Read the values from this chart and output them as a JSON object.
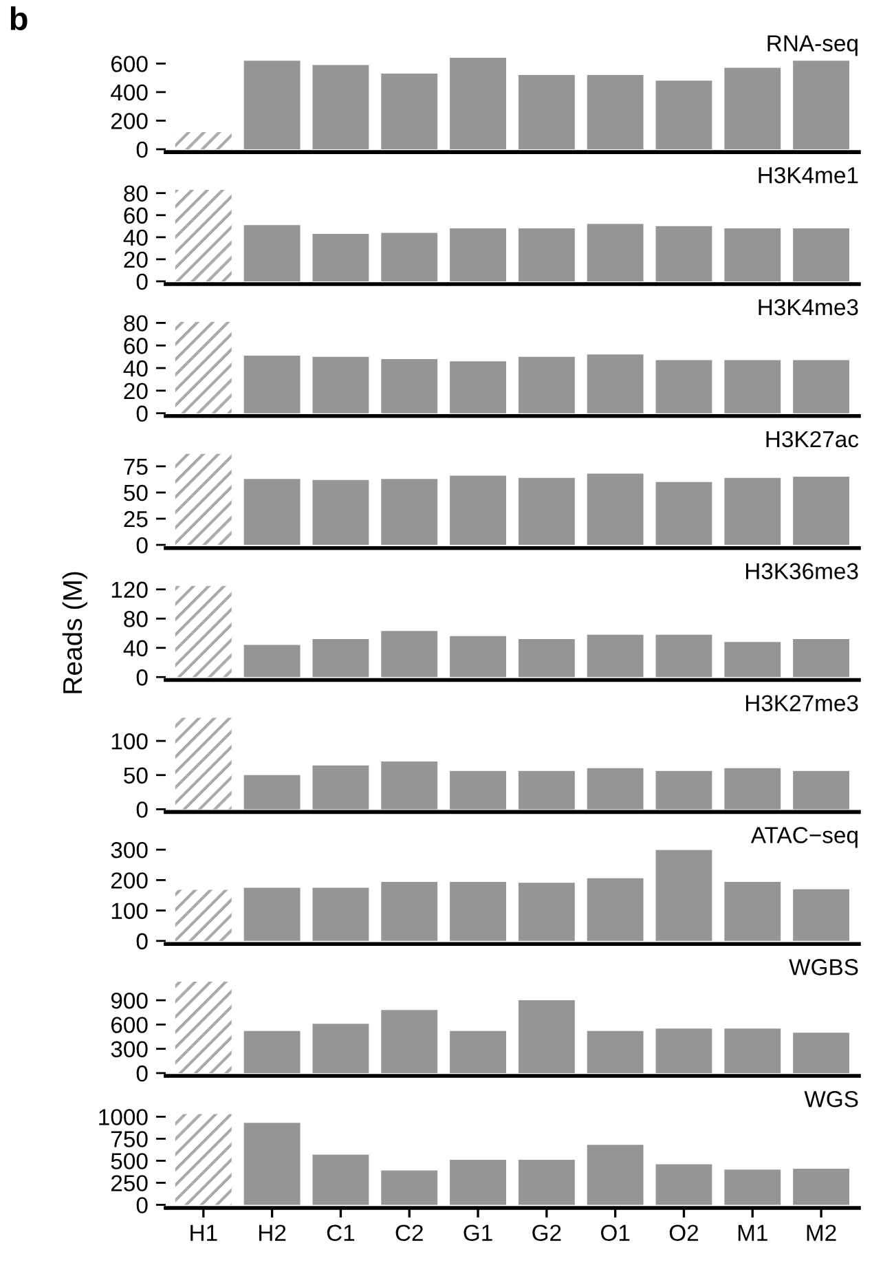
{
  "chart_data": [
    {
      "type": "bar",
      "title": "RNA-seq",
      "annotations": [
        "b"
      ],
      "categories": [
        null,
        null,
        null,
        null,
        null,
        null,
        null,
        null,
        null,
        null
      ],
      "color": "#959595",
      "colors": [
        "#aaaaaa",
        "#959595",
        "#959595",
        "#959595",
        "#959595",
        "#959595",
        "#959595",
        "#959595",
        "#959595",
        "#959595"
      ],
      "values": [
        120,
        620,
        590,
        530,
        640,
        520,
        520,
        480,
        570,
        620
      ],
      "ylim": [
        -20,
        640
      ],
      "yticks": [
        0,
        200,
        400,
        600
      ],
      "tick_labels": "y"
    },
    {
      "type": "bar",
      "title": "H3K4me1",
      "categories": [
        null,
        null,
        null,
        null,
        null,
        null,
        null,
        null,
        null,
        null
      ],
      "color": "#959595",
      "colors": [
        "#aaaaaa",
        "#959595",
        "#959595",
        "#959595",
        "#959595",
        "#959595",
        "#959595",
        "#959595",
        "#959595",
        "#959595"
      ],
      "values": [
        83,
        51,
        43,
        44,
        48,
        48,
        52,
        50,
        48,
        48
      ],
      "ylim": [
        -2.5,
        83
      ],
      "yticks": [
        0,
        20,
        40,
        60,
        80
      ],
      "tick_labels": "y"
    },
    {
      "type": "bar",
      "title": "H3K4me3",
      "categories": [
        null,
        null,
        null,
        null,
        null,
        null,
        null,
        null,
        null,
        null
      ],
      "color": "#959595",
      "colors": [
        "#aaaaaa",
        "#959595",
        "#959595",
        "#959595",
        "#959595",
        "#959595",
        "#959595",
        "#959595",
        "#959595",
        "#959595"
      ],
      "values": [
        81,
        51,
        50,
        48,
        46,
        50,
        52,
        47,
        47,
        47
      ],
      "ylim": [
        -2.5,
        81
      ],
      "yticks": [
        0,
        20,
        40,
        60,
        80
      ],
      "tick_labels": "y"
    },
    {
      "type": "bar",
      "title": "H3K27ac",
      "categories": [
        null,
        null,
        null,
        null,
        null,
        null,
        null,
        null,
        null,
        null
      ],
      "color": "#959595",
      "colors": [
        "#aaaaaa",
        "#959595",
        "#959595",
        "#959595",
        "#959595",
        "#959595",
        "#959595",
        "#959595",
        "#959595",
        "#959595"
      ],
      "values": [
        87,
        63,
        62,
        63,
        66,
        64,
        68,
        60,
        64,
        65
      ],
      "ylim": [
        -3,
        87
      ],
      "yticks": [
        0,
        25,
        50,
        75
      ],
      "tick_labels": "y"
    },
    {
      "type": "bar",
      "title": "H3K36me3",
      "ylabel": "Reads (M)",
      "categories": [
        null,
        null,
        null,
        null,
        null,
        null,
        null,
        null,
        null,
        null
      ],
      "color": "#959595",
      "colors": [
        "#aaaaaa",
        "#959595",
        "#959595",
        "#959595",
        "#959595",
        "#959595",
        "#959595",
        "#959595",
        "#959595",
        "#959595"
      ],
      "values": [
        125,
        44,
        52,
        63,
        56,
        52,
        58,
        58,
        48,
        52
      ],
      "ylim": [
        -4,
        125
      ],
      "yticks": [
        0,
        40,
        80,
        120
      ],
      "tick_labels": "y"
    },
    {
      "type": "bar",
      "title": "H3K27me3",
      "categories": [
        null,
        null,
        null,
        null,
        null,
        null,
        null,
        null,
        null,
        null
      ],
      "color": "#959595",
      "colors": [
        "#aaaaaa",
        "#959595",
        "#959595",
        "#959595",
        "#959595",
        "#959595",
        "#959595",
        "#959595",
        "#959595",
        "#959595"
      ],
      "values": [
        134,
        50,
        64,
        70,
        56,
        56,
        60,
        56,
        60,
        56
      ],
      "ylim": [
        -4,
        134
      ],
      "yticks": [
        0,
        50,
        100
      ],
      "tick_labels": "y"
    },
    {
      "type": "bar",
      "title": "ATAC−seq",
      "categories": [
        null,
        null,
        null,
        null,
        null,
        null,
        null,
        null,
        null,
        null
      ],
      "color": "#959595",
      "colors": [
        "#aaaaaa",
        "#959595",
        "#959595",
        "#959595",
        "#959595",
        "#959595",
        "#959595",
        "#959595",
        "#959595",
        "#959595"
      ],
      "values": [
        168,
        175,
        175,
        194,
        194,
        191,
        206,
        299,
        194,
        170
      ],
      "ylim": [
        -10,
        300
      ],
      "yticks": [
        0,
        100,
        200,
        300
      ],
      "tick_labels": "y"
    },
    {
      "type": "bar",
      "title": "WGBS",
      "categories": [
        null,
        null,
        null,
        null,
        null,
        null,
        null,
        null,
        null,
        null
      ],
      "color": "#959595",
      "colors": [
        "#aaaaaa",
        "#959595",
        "#959595",
        "#959595",
        "#959595",
        "#959595",
        "#959595",
        "#959595",
        "#959595",
        "#959595"
      ],
      "values": [
        1130,
        520,
        610,
        780,
        520,
        900,
        520,
        550,
        550,
        500
      ],
      "ylim": [
        -35,
        1130
      ],
      "yticks": [
        0,
        300,
        600,
        900
      ],
      "tick_labels": "y"
    },
    {
      "type": "bar",
      "title": "WGS",
      "categories": [
        "H1",
        "H2",
        "C1",
        "C2",
        "G1",
        "G2",
        "O1",
        "O2",
        "M1",
        "M2"
      ],
      "color": "#959595",
      "colors": [
        "#aaaaaa",
        "#959595",
        "#959595",
        "#959595",
        "#959595",
        "#959595",
        "#959595",
        "#959595",
        "#959595",
        "#959595"
      ],
      "values": [
        1030,
        930,
        570,
        390,
        510,
        510,
        680,
        460,
        400,
        410
      ],
      "ylim": [
        -35,
        1035
      ],
      "yticks": [
        0,
        250,
        500,
        750,
        1000
      ]
    }
  ]
}
